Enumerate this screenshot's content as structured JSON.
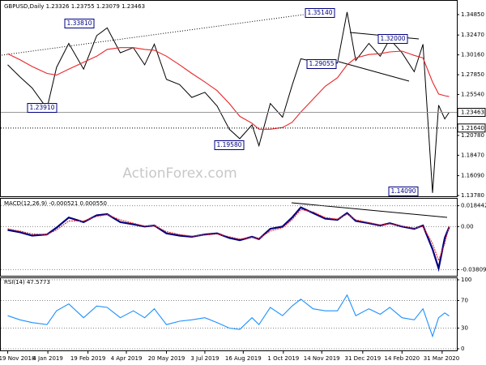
{
  "chart_data": [
    {
      "type": "line",
      "title": "GBPUSD,Daily  1.23326 1.23755 1.23079 1.23463",
      "watermark": "ActionForex.com",
      "xlim": [
        "2018-11-12",
        "2020-04-15"
      ],
      "x": [
        "2018-11-19",
        "2018-12-03",
        "2018-12-17",
        "2019-01-03",
        "2019-01-14",
        "2019-01-28",
        "2019-02-14",
        "2019-03-01",
        "2019-03-13",
        "2019-03-28",
        "2019-04-12",
        "2019-04-25",
        "2019-05-06",
        "2019-05-20",
        "2019-06-04",
        "2019-06-18",
        "2019-07-03",
        "2019-07-17",
        "2019-07-31",
        "2019-08-12",
        "2019-08-26",
        "2019-09-03",
        "2019-09-16",
        "2019-09-30",
        "2019-10-11",
        "2019-10-21",
        "2019-11-04",
        "2019-11-18",
        "2019-12-02",
        "2019-12-13",
        "2019-12-23",
        "2020-01-07",
        "2020-01-20",
        "2020-01-31",
        "2020-02-14",
        "2020-02-28",
        "2020-03-09",
        "2020-03-20",
        "2020-03-27",
        "2020-04-03",
        "2020-04-08"
      ],
      "series": [
        {
          "color": "#000000",
          "values": [
            1.29,
            1.276,
            1.263,
            1.2391,
            1.287,
            1.315,
            1.285,
            1.324,
            1.333,
            1.304,
            1.31,
            1.29,
            1.314,
            1.273,
            1.267,
            1.252,
            1.258,
            1.242,
            1.215,
            1.204,
            1.22,
            1.1958,
            1.245,
            1.229,
            1.266,
            1.297,
            1.294,
            1.292,
            1.292,
            1.3514,
            1.295,
            1.315,
            1.3,
            1.32,
            1.304,
            1.282,
            1.314,
            1.1409,
            1.243,
            1.227,
            1.23463
          ]
        },
        {
          "color": "#e8262a",
          "values": [
            1.303,
            1.296,
            1.288,
            1.28,
            1.278,
            1.285,
            1.293,
            1.3,
            1.308,
            1.31,
            1.31,
            1.308,
            1.307,
            1.3,
            1.29,
            1.28,
            1.27,
            1.26,
            1.245,
            1.23,
            1.222,
            1.215,
            1.215,
            1.217,
            1.223,
            1.235,
            1.25,
            1.265,
            1.275,
            1.29,
            1.298,
            1.302,
            1.303,
            1.305,
            1.306,
            1.301,
            1.298,
            1.27,
            1.256,
            1.254,
            1.253
          ]
        }
      ],
      "ylim": [
        1.1369,
        1.3636
      ],
      "yticks": [
        {
          "value": 1.3485,
          "label": "1.34850"
        },
        {
          "value": 1.3247,
          "label": "1.32470"
        },
        {
          "value": 1.3016,
          "label": "1.30160"
        },
        {
          "value": 1.2785,
          "label": "1.27850"
        },
        {
          "value": 1.2554,
          "label": "1.25540"
        },
        {
          "value": 1.2078,
          "label": "1.20780"
        },
        {
          "value": 1.1847,
          "label": "1.18470"
        },
        {
          "value": 1.1609,
          "label": "1.16090"
        },
        {
          "value": 1.1378,
          "label": "1.13780"
        }
      ],
      "price_labels": [
        1.23463,
        {
          "value": 1.2164,
          "label": "1.21640"
        }
      ],
      "annotations": [
        "1.35140",
        "1.33810",
        "1.23910",
        "1.19580",
        "1.29055",
        "1.32000",
        "1.14090"
      ],
      "xticks": [
        {
          "value": "2018-11-19",
          "label": "19 Nov 2018"
        },
        {
          "value": "2019-01-04",
          "label": "4 Jan 2019"
        },
        {
          "value": "2019-02-19",
          "label": "19 Feb 2019"
        },
        {
          "value": "2019-04-04",
          "label": "4 Apr 2019"
        },
        {
          "value": "2019-05-20",
          "label": "20 May 2019"
        },
        {
          "value": "2019-07-03",
          "label": "3 Jul 2019"
        },
        {
          "value": "2019-08-16",
          "label": "16 Aug 2019"
        },
        {
          "value": "2019-10-01",
          "label": "1 Oct 2019"
        },
        {
          "value": "2019-11-14",
          "label": "14 Nov 2019"
        },
        {
          "value": "2019-12-31",
          "label": "31 Dec 2019"
        },
        {
          "value": "2020-02-14",
          "label": "14 Feb 2020"
        },
        {
          "value": "2020-03-31",
          "label": "31 Mar 2020"
        }
      ]
    },
    {
      "type": "line",
      "title": "MACD(12,26,9) -0.000521 0.000550",
      "series": [
        {
          "color": "#000080",
          "values": [
            -0.003,
            -0.005,
            -0.008,
            -0.007,
            -0.001,
            0.008,
            0.004,
            0.01,
            0.011,
            0.004,
            0.002,
            0,
            0.001,
            -0.006,
            -0.008,
            -0.009,
            -0.007,
            -0.006,
            -0.01,
            -0.012,
            -0.009,
            -0.011,
            -0.002,
            0,
            0.008,
            0.017,
            0.012,
            0.007,
            0.006,
            0.012,
            0.005,
            0.003,
            0.001,
            0.003,
            0,
            -0.002,
            0.001,
            -0.02,
            -0.037,
            -0.01,
            -0.000521
          ]
        },
        {
          "color": "#e8262a",
          "values": [
            -0.002,
            -0.004,
            -0.0065,
            -0.007,
            -0.003,
            0.005,
            0.005,
            0.009,
            0.0105,
            0.006,
            0.003,
            0.0005,
            0.0008,
            -0.0045,
            -0.007,
            -0.0085,
            -0.0075,
            -0.0065,
            -0.009,
            -0.011,
            -0.0095,
            -0.0105,
            -0.004,
            -0.001,
            0.006,
            0.015,
            0.013,
            0.008,
            0.0065,
            0.011,
            0.006,
            0.0035,
            0.0015,
            0.0025,
            0.0005,
            -0.0015,
            0,
            -0.015,
            -0.03,
            -0.015,
            0.00055
          ]
        }
      ],
      "ylim": [
        -0.0421,
        0.0225
      ],
      "yticks": [
        0.018442,
        {
          "value": 0,
          "label": "0.00"
        },
        -0.038095
      ]
    },
    {
      "type": "line",
      "title": "RSI(14) 47.5773",
      "series": [
        {
          "color": "#1e90ff",
          "values": [
            48,
            42,
            38,
            35,
            55,
            65,
            45,
            62,
            60,
            45,
            55,
            45,
            58,
            35,
            40,
            42,
            45,
            38,
            30,
            28,
            45,
            35,
            60,
            48,
            62,
            72,
            58,
            55,
            55,
            78,
            48,
            58,
            50,
            60,
            45,
            42,
            58,
            18,
            45,
            52,
            47.5773
          ]
        }
      ],
      "ylim": [
        -2.4,
        103.5
      ],
      "yticks": [
        100,
        70,
        30,
        0
      ]
    }
  ]
}
